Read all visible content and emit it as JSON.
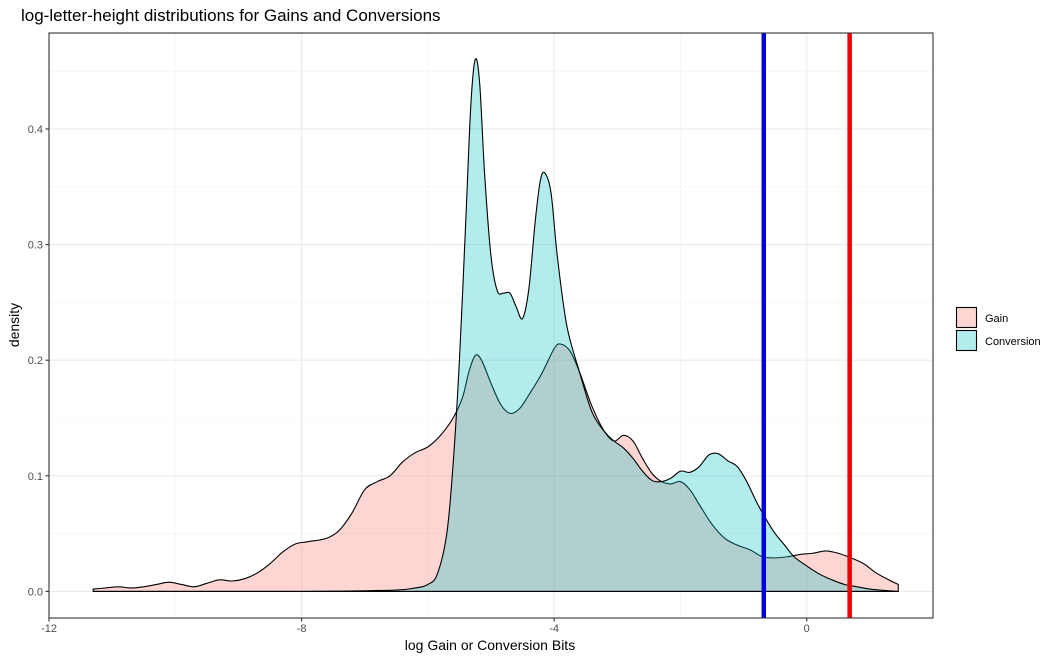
{
  "chart_data": {
    "type": "area",
    "title": "log-letter-height distributions for Gains and Conversions",
    "xlabel": "log Gain or Conversion Bits",
    "ylabel": "density",
    "xlim": [
      -12,
      2
    ],
    "ylim": [
      -0.023,
      0.483
    ],
    "x_ticks": [
      -12,
      -8,
      -4,
      0
    ],
    "x_tick_labels": [
      "-12",
      "-8",
      "-4",
      "0"
    ],
    "y_ticks": [
      0.0,
      0.1,
      0.2,
      0.3,
      0.4
    ],
    "y_tick_labels": [
      "0.0",
      "0.1",
      "0.2",
      "0.3",
      "0.4"
    ],
    "grid": true,
    "legend_position": "right",
    "series": [
      {
        "name": "Gain",
        "fill": "#f8766d",
        "points": [
          [
            -11.3,
            0.002
          ],
          [
            -11.1,
            0.003
          ],
          [
            -10.9,
            0.004
          ],
          [
            -10.7,
            0.003
          ],
          [
            -10.5,
            0.004
          ],
          [
            -10.3,
            0.006
          ],
          [
            -10.1,
            0.008
          ],
          [
            -9.9,
            0.006
          ],
          [
            -9.7,
            0.004
          ],
          [
            -9.5,
            0.007
          ],
          [
            -9.3,
            0.01
          ],
          [
            -9.1,
            0.009
          ],
          [
            -8.9,
            0.011
          ],
          [
            -8.7,
            0.016
          ],
          [
            -8.5,
            0.024
          ],
          [
            -8.3,
            0.034
          ],
          [
            -8.1,
            0.041
          ],
          [
            -7.9,
            0.043
          ],
          [
            -7.6,
            0.046
          ],
          [
            -7.4,
            0.053
          ],
          [
            -7.2,
            0.068
          ],
          [
            -7.0,
            0.088
          ],
          [
            -6.8,
            0.095
          ],
          [
            -6.6,
            0.1
          ],
          [
            -6.4,
            0.112
          ],
          [
            -6.2,
            0.12
          ],
          [
            -6.0,
            0.125
          ],
          [
            -5.8,
            0.135
          ],
          [
            -5.6,
            0.15
          ],
          [
            -5.45,
            0.168
          ],
          [
            -5.35,
            0.19
          ],
          [
            -5.25,
            0.204
          ],
          [
            -5.15,
            0.2
          ],
          [
            -5.0,
            0.18
          ],
          [
            -4.85,
            0.162
          ],
          [
            -4.7,
            0.154
          ],
          [
            -4.55,
            0.158
          ],
          [
            -4.4,
            0.17
          ],
          [
            -4.2,
            0.188
          ],
          [
            -4.0,
            0.21
          ],
          [
            -3.9,
            0.214
          ],
          [
            -3.75,
            0.208
          ],
          [
            -3.6,
            0.19
          ],
          [
            -3.4,
            0.16
          ],
          [
            -3.2,
            0.138
          ],
          [
            -3.05,
            0.13
          ],
          [
            -2.9,
            0.135
          ],
          [
            -2.75,
            0.13
          ],
          [
            -2.6,
            0.115
          ],
          [
            -2.45,
            0.102
          ],
          [
            -2.3,
            0.095
          ],
          [
            -2.15,
            0.093
          ],
          [
            -2.0,
            0.095
          ],
          [
            -1.85,
            0.088
          ],
          [
            -1.7,
            0.075
          ],
          [
            -1.5,
            0.058
          ],
          [
            -1.3,
            0.046
          ],
          [
            -1.1,
            0.04
          ],
          [
            -0.9,
            0.036
          ],
          [
            -0.7,
            0.03
          ],
          [
            -0.5,
            0.029
          ],
          [
            -0.3,
            0.03
          ],
          [
            -0.1,
            0.032
          ],
          [
            0.1,
            0.033
          ],
          [
            0.3,
            0.035
          ],
          [
            0.5,
            0.033
          ],
          [
            0.7,
            0.029
          ],
          [
            0.9,
            0.024
          ],
          [
            1.1,
            0.016
          ],
          [
            1.3,
            0.01
          ],
          [
            1.45,
            0.006
          ]
        ]
      },
      {
        "name": "Conversion",
        "fill": "#00bfc4",
        "points": [
          [
            -11.3,
            0.0
          ],
          [
            -8.0,
            0.0
          ],
          [
            -6.6,
            0.001
          ],
          [
            -6.2,
            0.003
          ],
          [
            -6.0,
            0.006
          ],
          [
            -5.85,
            0.015
          ],
          [
            -5.7,
            0.05
          ],
          [
            -5.6,
            0.11
          ],
          [
            -5.5,
            0.2
          ],
          [
            -5.4,
            0.32
          ],
          [
            -5.32,
            0.42
          ],
          [
            -5.25,
            0.46
          ],
          [
            -5.18,
            0.44
          ],
          [
            -5.1,
            0.36
          ],
          [
            -5.0,
            0.29
          ],
          [
            -4.9,
            0.26
          ],
          [
            -4.8,
            0.258
          ],
          [
            -4.7,
            0.258
          ],
          [
            -4.6,
            0.246
          ],
          [
            -4.5,
            0.236
          ],
          [
            -4.4,
            0.262
          ],
          [
            -4.3,
            0.32
          ],
          [
            -4.22,
            0.355
          ],
          [
            -4.15,
            0.362
          ],
          [
            -4.05,
            0.345
          ],
          [
            -3.95,
            0.29
          ],
          [
            -3.8,
            0.23
          ],
          [
            -3.6,
            0.19
          ],
          [
            -3.4,
            0.155
          ],
          [
            -3.2,
            0.138
          ],
          [
            -3.05,
            0.13
          ],
          [
            -2.9,
            0.124
          ],
          [
            -2.75,
            0.115
          ],
          [
            -2.6,
            0.104
          ],
          [
            -2.45,
            0.096
          ],
          [
            -2.3,
            0.095
          ],
          [
            -2.15,
            0.098
          ],
          [
            -2.0,
            0.104
          ],
          [
            -1.85,
            0.103
          ],
          [
            -1.7,
            0.108
          ],
          [
            -1.55,
            0.118
          ],
          [
            -1.4,
            0.119
          ],
          [
            -1.25,
            0.113
          ],
          [
            -1.1,
            0.108
          ],
          [
            -0.95,
            0.095
          ],
          [
            -0.8,
            0.078
          ],
          [
            -0.65,
            0.063
          ],
          [
            -0.5,
            0.05
          ],
          [
            -0.35,
            0.04
          ],
          [
            -0.2,
            0.03
          ],
          [
            0.0,
            0.022
          ],
          [
            0.2,
            0.015
          ],
          [
            0.4,
            0.01
          ],
          [
            0.6,
            0.006
          ],
          [
            0.8,
            0.004
          ],
          [
            1.0,
            0.002
          ],
          [
            1.2,
            0.001
          ],
          [
            1.45,
            0.0
          ]
        ]
      }
    ],
    "vlines": [
      {
        "x": -0.68,
        "color": "#0000dd"
      },
      {
        "x": 0.68,
        "color": "#ee0000"
      }
    ]
  }
}
